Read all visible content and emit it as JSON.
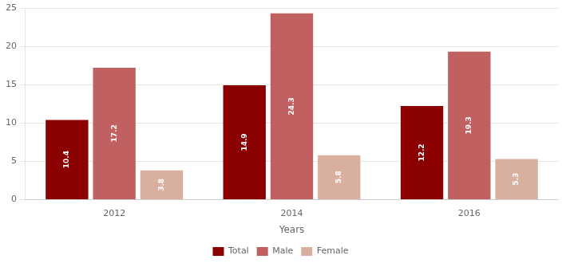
{
  "chart_data": {
    "type": "bar",
    "categories": [
      "2012",
      "2014",
      "2016"
    ],
    "series": [
      {
        "name": "Total",
        "color": "#8B0000",
        "values": [
          10.4,
          14.9,
          12.2
        ]
      },
      {
        "name": "Male",
        "color": "#C06060",
        "values": [
          17.2,
          24.3,
          19.3
        ]
      },
      {
        "name": "Female",
        "color": "#D9B0A0",
        "values": [
          3.8,
          5.8,
          5.3
        ]
      }
    ],
    "xlabel": "Years",
    "ylim": [
      0,
      25
    ],
    "yticks": [
      0,
      5,
      10,
      15,
      20,
      25
    ],
    "grid": true,
    "legend": "bottom",
    "data_labels": true
  }
}
